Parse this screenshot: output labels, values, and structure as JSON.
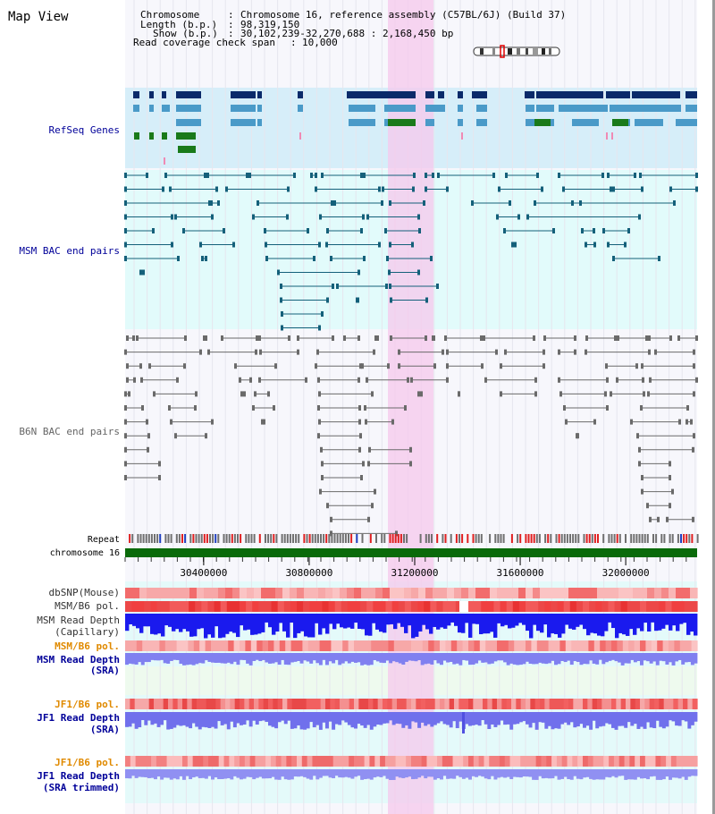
{
  "view_title": "Map View",
  "header": {
    "chromosome_label": "Chromosome",
    "chromosome_value": "Chromosome 16, reference assembly (C57BL/6J) (Build 37)",
    "length_label": "Length (b.p.)",
    "length_value": "98,319,150",
    "show_label": "Show (b.p.)",
    "show_value": "30,102,239-32,270,688 : 2,168,450 bp",
    "coverage_label": "Read coverage check span",
    "coverage_value": "10,000"
  },
  "tracks": {
    "refseq": "RefSeq Genes",
    "msm_bac": "MSM BAC end pairs",
    "b6n_bac": "B6N BAC end pairs",
    "repeat": "Repeat",
    "chromosome": "chromosome 16",
    "dbsnp": "dbSNP(Mouse)",
    "msm_b6_pol": "MSM/B6 pol.",
    "msm_read_depth_cap_1": "MSM Read Depth",
    "msm_read_depth_cap_2": "(Capillary)",
    "msm_b6_pol_2": "MSM/B6 pol.",
    "msm_read_depth_sra_1": "MSM Read Depth",
    "msm_read_depth_sra_2": "(SRA)",
    "jf1_b6_pol": "JF1/B6 pol.",
    "jf1_read_depth_sra_1": "JF1 Read Depth",
    "jf1_read_depth_sra_2": "(SRA)",
    "jf1_b6_pol_2": "JF1/B6 pol.",
    "jf1_read_depth_trim_1": "JF1 Read Depth",
    "jf1_read_depth_trim_2": "(SRA trimmed)"
  },
  "axis": {
    "ticks": [
      "30400000",
      "30800000",
      "31200000",
      "31600000",
      "32000000"
    ],
    "tick_values": [
      30400000,
      30800000,
      31200000,
      31600000,
      32000000
    ],
    "view_start": 30102239,
    "view_end": 32270688
  },
  "colors": {
    "highlight": "#f6c8ec",
    "refseq_bg": "#d6eef9",
    "msm_bg": "#e2fbfb",
    "b6n_bg": "#f5f5fb",
    "track_label_blue": "#000099",
    "track_label_orange": "#e08a00",
    "gene_dark": "#0a2a6a",
    "gene_mid": "#4a9ac8",
    "gene_green": "#1a7a1a",
    "msm_pair": "#14607a",
    "b6n_pair": "#6a6a6a",
    "chromosome_bar": "#0a6a0a",
    "snp_red": "#f04040",
    "depth_blue": "#1a1aee",
    "depth_lilac": "#8080f0"
  }
}
